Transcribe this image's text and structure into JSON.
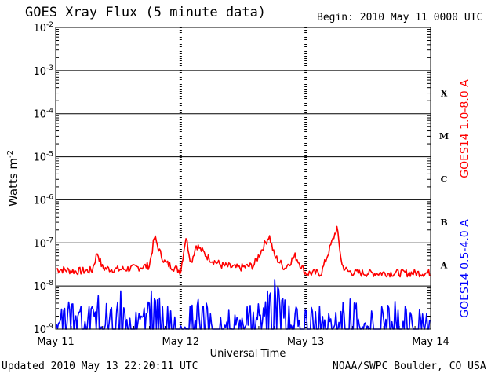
{
  "header": {
    "title": "GOES Xray Flux (5 minute data)",
    "begin": "Begin:  2010 May 11 0000 UTC"
  },
  "footer": {
    "updated": "Updated 2010 May 13 22:20:11 UTC",
    "credit": "NOAA/SWPC Boulder, CO USA"
  },
  "colors": {
    "long": "#ff0000",
    "short": "#0000ff",
    "axis": "#000000"
  },
  "chart_data": {
    "type": "line",
    "title": "GOES Xray Flux (5 minute data)",
    "xlabel": "Universal Time",
    "ylabel": "Watts m",
    "ylabel_superscript": "-2",
    "y_scale": "log",
    "ylim": [
      1e-09,
      0.01
    ],
    "y_ticks": [
      {
        "base": "10",
        "exp": "-9",
        "value": 1e-09
      },
      {
        "base": "10",
        "exp": "-8",
        "value": 1e-08
      },
      {
        "base": "10",
        "exp": "-7",
        "value": 1e-07
      },
      {
        "base": "10",
        "exp": "-6",
        "value": 1e-06
      },
      {
        "base": "10",
        "exp": "-5",
        "value": 1e-05
      },
      {
        "base": "10",
        "exp": "-4",
        "value": 0.0001
      },
      {
        "base": "10",
        "exp": "-3",
        "value": 0.001
      },
      {
        "base": "10",
        "exp": "-2",
        "value": 0.01
      }
    ],
    "x_ticks": [
      "May 11",
      "May 12",
      "May 13",
      "May 14"
    ],
    "flare_classes": [
      {
        "label": "A",
        "value": 1e-08
      },
      {
        "label": "B",
        "value": 1e-07
      },
      {
        "label": "C",
        "value": 1e-06
      },
      {
        "label": "M",
        "value": 1e-05
      },
      {
        "label": "X",
        "value": 0.0001
      }
    ],
    "grid": true,
    "series": [
      {
        "name": "GOES14 1.0-8.0 A",
        "color": "#ff0000",
        "x": [
          "2010-05-11T00:00",
          "2010-05-11T04:00",
          "2010-05-11T07:00",
          "2010-05-11T08:00",
          "2010-05-11T09:00",
          "2010-05-11T12:00",
          "2010-05-11T15:00",
          "2010-05-11T18:00",
          "2010-05-11T19:00",
          "2010-05-11T20:00",
          "2010-05-11T21:00",
          "2010-05-11T22:00",
          "2010-05-12T00:00",
          "2010-05-12T01:00",
          "2010-05-12T02:00",
          "2010-05-12T03:00",
          "2010-05-12T05:00",
          "2010-05-12T06:00",
          "2010-05-12T08:00",
          "2010-05-12T11:00",
          "2010-05-12T14:00",
          "2010-05-12T17:00",
          "2010-05-12T18:00",
          "2010-05-12T20:00",
          "2010-05-12T22:00",
          "2010-05-13T00:00",
          "2010-05-13T03:00",
          "2010-05-13T06:00",
          "2010-05-13T07:00",
          "2010-05-13T08:00",
          "2010-05-13T10:00",
          "2010-05-13T14:00",
          "2010-05-13T18:00",
          "2010-05-13T22:00"
        ],
        "values": [
          2.5e-08,
          2.2e-08,
          2.3e-08,
          6e-08,
          2.6e-08,
          2.4e-08,
          2.6e-08,
          3e-08,
          1.4e-07,
          6e-08,
          3.5e-08,
          3e-08,
          2.2e-08,
          1.4e-07,
          3.5e-08,
          9e-08,
          5e-08,
          4e-08,
          3e-08,
          2.6e-08,
          3e-08,
          1.5e-07,
          5e-08,
          2.6e-08,
          5e-08,
          2e-08,
          2e-08,
          2.2e-07,
          3e-08,
          2.2e-08,
          2e-08,
          2e-08,
          2e-08,
          2e-08
        ]
      },
      {
        "name": "GOES14 0.5-4.0 A",
        "color": "#0000ff",
        "x": [
          "2010-05-11T00:00",
          "2010-05-11T03:00",
          "2010-05-11T06:00",
          "2010-05-11T08:00",
          "2010-05-11T09:00",
          "2010-05-11T12:00",
          "2010-05-11T15:00",
          "2010-05-11T19:00",
          "2010-05-11T21:00",
          "2010-05-12T00:00",
          "2010-05-12T03:00",
          "2010-05-12T06:00",
          "2010-05-12T10:00",
          "2010-05-12T14:00",
          "2010-05-12T16:00",
          "2010-05-12T18:00",
          "2010-05-12T20:00",
          "2010-05-12T23:00",
          "2010-05-13T02:00",
          "2010-05-13T05:00",
          "2010-05-13T08:00",
          "2010-05-13T12:00",
          "2010-05-13T16:00",
          "2010-05-13T19:00",
          "2010-05-13T22:00"
        ],
        "values": [
          1.5e-09,
          3e-09,
          2e-09,
          4e-09,
          1.5e-09,
          5.5e-09,
          2e-09,
          5e-09,
          2e-09,
          1e-09,
          3e-09,
          2e-09,
          1.5e-09,
          2e-09,
          3e-09,
          9e-09,
          3e-09,
          1.5e-09,
          2e-09,
          1.5e-09,
          4e-09,
          1.5e-09,
          3e-09,
          2e-09,
          1.5e-09
        ]
      }
    ],
    "legend": "right"
  }
}
